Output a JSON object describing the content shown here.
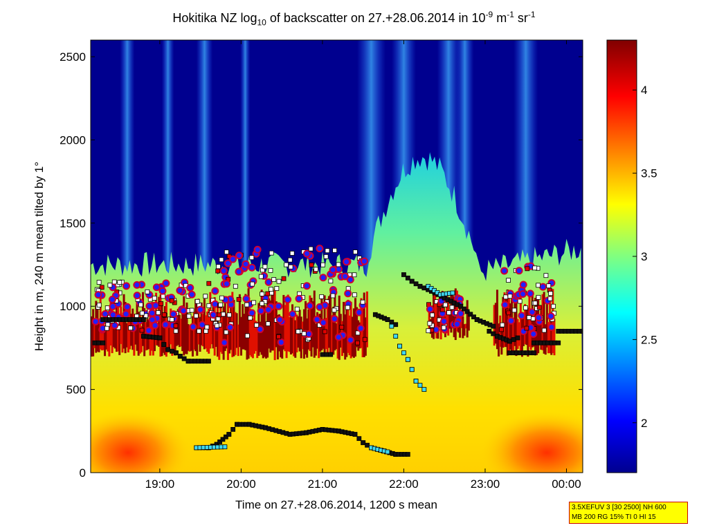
{
  "chart_data": {
    "type": "heatmap",
    "title_main": "Hokitika NZ log",
    "title_sub": "10",
    "title_mid": " of backscatter on 27.+28.06.2014 in 10",
    "title_sup1": "-9",
    "title_unit1": " m",
    "title_sup2": "-1",
    "title_unit2": " sr",
    "title_sup3": "-1",
    "xlabel": "Time on 27.+28.06.2014, 1200 s mean",
    "ylabel": "Height in m, 240 m mean tilted by 1°",
    "xlim_hours": [
      18.15,
      24.2
    ],
    "ylim": [
      0,
      2600
    ],
    "x_ticks": [
      {
        "hour": 19,
        "label": "19:00"
      },
      {
        "hour": 20,
        "label": "20:00"
      },
      {
        "hour": 21,
        "label": "21:00"
      },
      {
        "hour": 22,
        "label": "22:00"
      },
      {
        "hour": 23,
        "label": "23:00"
      },
      {
        "hour": 24,
        "label": "00:00"
      }
    ],
    "y_ticks": [
      {
        "value": 0,
        "label": "0"
      },
      {
        "value": 500,
        "label": "500"
      },
      {
        "value": 1000,
        "label": "1000"
      },
      {
        "value": 1500,
        "label": "1500"
      },
      {
        "value": 2000,
        "label": "2000"
      },
      {
        "value": 2500,
        "label": "2500"
      }
    ],
    "colorbar": {
      "range": [
        1.7,
        4.3
      ],
      "ticks": [
        {
          "value": 2,
          "label": "2"
        },
        {
          "value": 2.5,
          "label": "2.5"
        },
        {
          "value": 3,
          "label": "3"
        },
        {
          "value": 3.5,
          "label": "3.5"
        },
        {
          "value": 4,
          "label": "4"
        }
      ]
    },
    "colors": {
      "dark_blue": "#00008f",
      "blue": "#0000ff",
      "cyan": "#00ffff",
      "yellow": "#ffff00",
      "red": "#ff0000",
      "dark_red": "#800000"
    },
    "cloud_base_black": [
      [
        [
          18.2,
          780
        ],
        [
          18.3,
          780
        ]
      ],
      [
        [
          18.3,
          920
        ],
        [
          18.8,
          920
        ]
      ],
      [
        [
          18.8,
          820
        ],
        [
          19.0,
          810
        ],
        [
          19.05,
          770
        ],
        [
          19.1,
          740
        ],
        [
          19.2,
          720
        ],
        [
          19.25,
          700
        ],
        [
          19.35,
          670
        ],
        [
          19.6,
          670
        ]
      ],
      [
        [
          21.0,
          710
        ],
        [
          21.1,
          710
        ]
      ],
      [
        [
          21.65,
          950
        ],
        [
          21.8,
          920
        ],
        [
          21.9,
          890
        ]
      ],
      [
        [
          22.0,
          1190
        ],
        [
          22.1,
          1150
        ],
        [
          22.2,
          1120
        ],
        [
          22.3,
          1100
        ],
        [
          22.5,
          1050
        ],
        [
          22.7,
          1000
        ],
        [
          22.9,
          920
        ],
        [
          23.1,
          880
        ]
      ],
      [
        [
          23.05,
          850
        ],
        [
          23.15,
          820
        ],
        [
          23.3,
          790
        ],
        [
          23.4,
          810
        ]
      ],
      [
        [
          23.3,
          720
        ],
        [
          23.6,
          720
        ]
      ],
      [
        [
          23.6,
          780
        ],
        [
          23.9,
          780
        ]
      ],
      [
        [
          23.9,
          850
        ],
        [
          24.2,
          850
        ]
      ]
    ],
    "cloud_base_cyan": [
      [
        [
          21.85,
          880
        ],
        [
          21.95,
          760
        ],
        [
          22.05,
          680
        ],
        [
          22.1,
          620
        ],
        [
          22.15,
          550
        ],
        [
          22.25,
          500
        ]
      ],
      [
        [
          22.3,
          1120
        ],
        [
          22.45,
          1070
        ],
        [
          22.6,
          1080
        ]
      ]
    ],
    "boundary_layer": [
      [
        19.45,
        150
      ],
      [
        19.6,
        150
      ],
      [
        19.7,
        170
      ],
      [
        19.85,
        230
      ],
      [
        19.95,
        290
      ],
      [
        20.1,
        290
      ],
      [
        20.3,
        270
      ],
      [
        20.6,
        230
      ],
      [
        20.8,
        240
      ],
      [
        21.0,
        260
      ],
      [
        21.2,
        250
      ],
      [
        21.4,
        230
      ],
      [
        21.5,
        180
      ],
      [
        21.6,
        150
      ],
      [
        21.75,
        130
      ],
      [
        21.9,
        110
      ],
      [
        22.05,
        110
      ]
    ],
    "info_line1": "3.5XEFUV 3 [30 2500] NH 600",
    "info_line2": "MB 200 RG 15% TI 0 HI 15"
  }
}
